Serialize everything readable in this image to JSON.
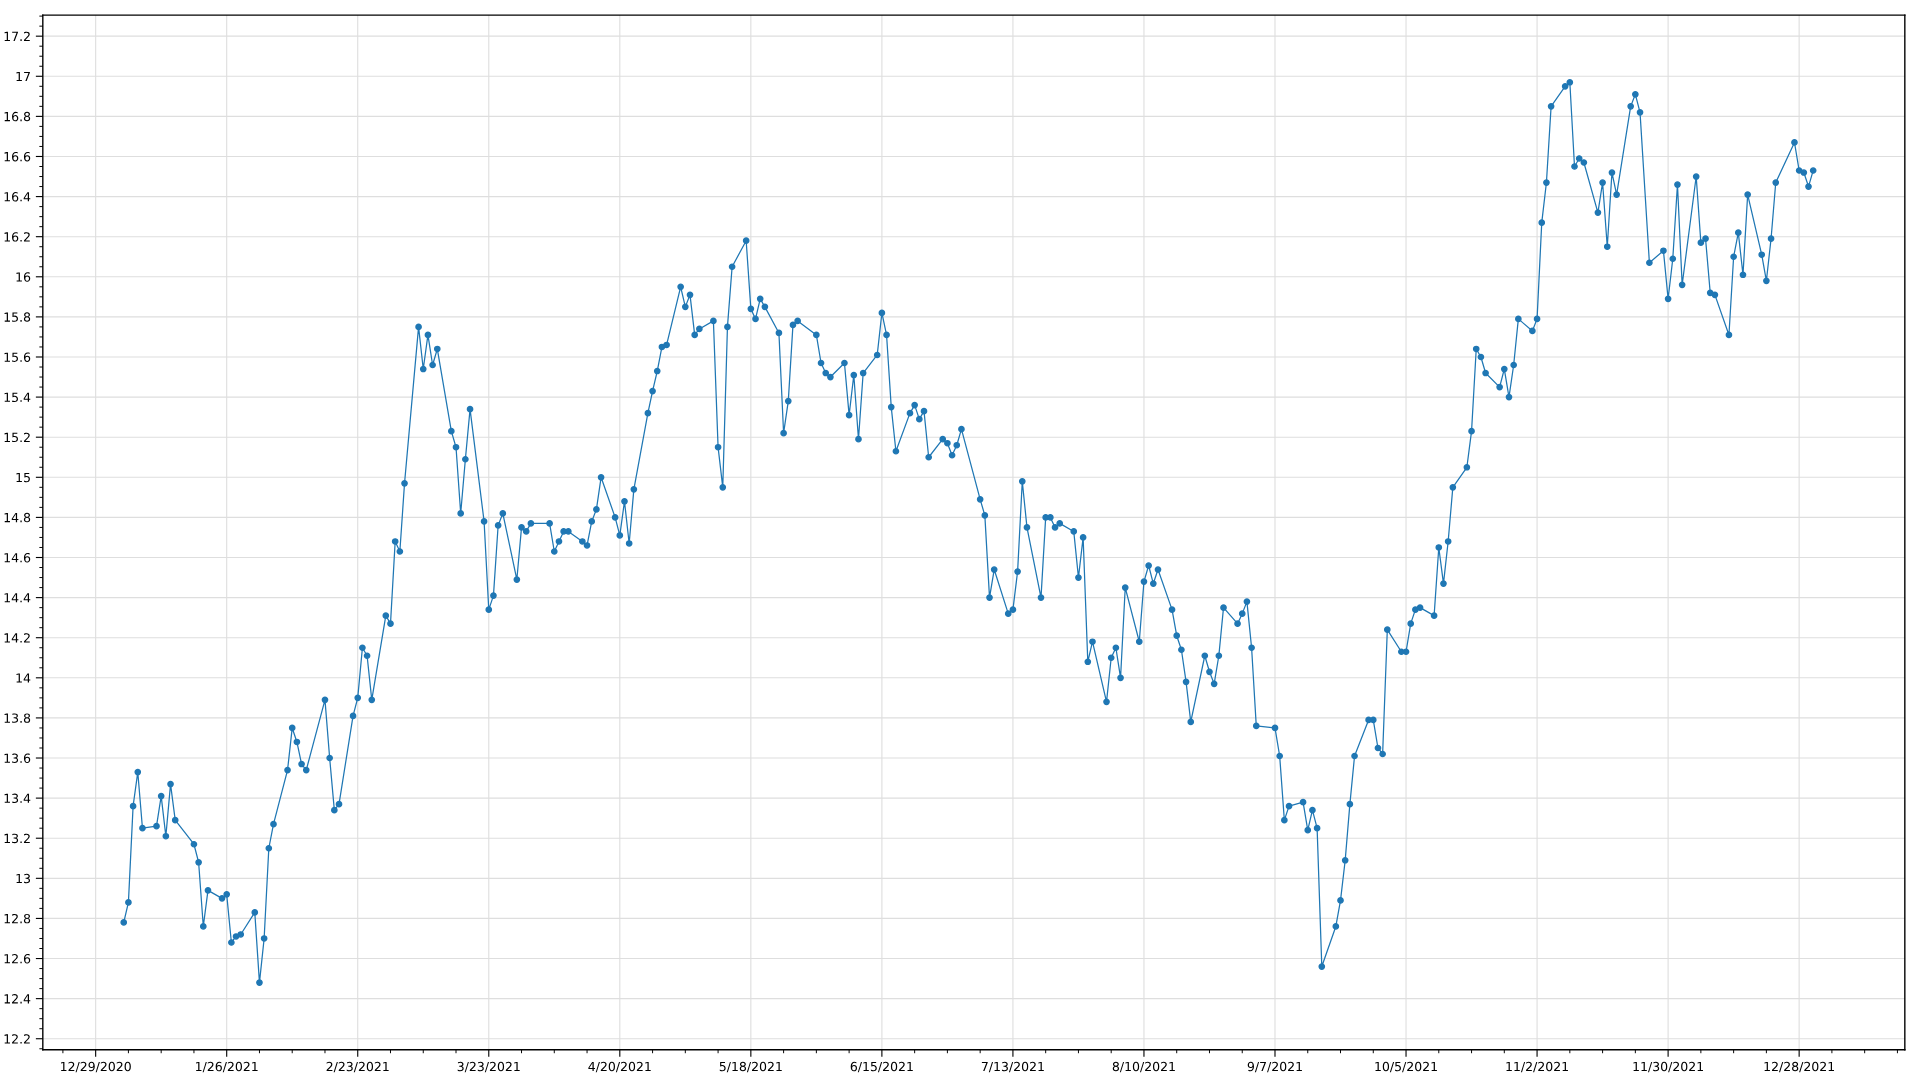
{
  "chart_data": {
    "type": "line",
    "marker": "circle",
    "line_style": "solid",
    "grid": true,
    "xlim": [
      "2020-12-17T17:00",
      "2022-01-19T14:00"
    ],
    "ylim": [
      12.145,
      17.305
    ],
    "xticks": [
      {
        "value": "2020-12-29",
        "label": "12/29/2020"
      },
      {
        "value": "2021-01-26",
        "label": "1/26/2021"
      },
      {
        "value": "2021-02-23",
        "label": "2/23/2021"
      },
      {
        "value": "2021-03-23",
        "label": "3/23/2021"
      },
      {
        "value": "2021-04-20",
        "label": "4/20/2021"
      },
      {
        "value": "2021-05-18",
        "label": "5/18/2021"
      },
      {
        "value": "2021-06-15",
        "label": "6/15/2021"
      },
      {
        "value": "2021-07-13",
        "label": "7/13/2021"
      },
      {
        "value": "2021-08-10",
        "label": "8/10/2021"
      },
      {
        "value": "2021-09-07",
        "label": "9/7/2021"
      },
      {
        "value": "2021-10-05",
        "label": "10/5/2021"
      },
      {
        "value": "2021-11-02",
        "label": "11/2/2021"
      },
      {
        "value": "2021-11-30",
        "label": "11/30/2021"
      },
      {
        "value": "2021-12-28",
        "label": "12/28/2021"
      }
    ],
    "yticks": [
      12.2,
      12.4,
      12.6,
      12.8,
      13,
      13.2,
      13.4,
      13.6,
      13.8,
      14,
      14.2,
      14.4,
      14.6,
      14.8,
      15,
      15.2,
      15.4,
      15.6,
      15.8,
      16,
      16.2,
      16.4,
      16.6,
      16.8,
      17,
      17.2
    ],
    "x": [
      "2021-01-04",
      "2021-01-05",
      "2021-01-06",
      "2021-01-07",
      "2021-01-08",
      "2021-01-11",
      "2021-01-12",
      "2021-01-13",
      "2021-01-14",
      "2021-01-15",
      "2021-01-19",
      "2021-01-20",
      "2021-01-21",
      "2021-01-22",
      "2021-01-25",
      "2021-01-26",
      "2021-01-27",
      "2021-01-28",
      "2021-01-29",
      "2021-02-01",
      "2021-02-02",
      "2021-02-03",
      "2021-02-04",
      "2021-02-05",
      "2021-02-08",
      "2021-02-09",
      "2021-02-10",
      "2021-02-11",
      "2021-02-12",
      "2021-02-16",
      "2021-02-17",
      "2021-02-18",
      "2021-02-19",
      "2021-02-22",
      "2021-02-23",
      "2021-02-24",
      "2021-02-25",
      "2021-02-26",
      "2021-03-01",
      "2021-03-02",
      "2021-03-03",
      "2021-03-04",
      "2021-03-05",
      "2021-03-08",
      "2021-03-09",
      "2021-03-10",
      "2021-03-11",
      "2021-03-12",
      "2021-03-15",
      "2021-03-16",
      "2021-03-17",
      "2021-03-18",
      "2021-03-19",
      "2021-03-22",
      "2021-03-23",
      "2021-03-24",
      "2021-03-25",
      "2021-03-26",
      "2021-03-29",
      "2021-03-30",
      "2021-03-31",
      "2021-04-01",
      "2021-04-05",
      "2021-04-06",
      "2021-04-07",
      "2021-04-08",
      "2021-04-09",
      "2021-04-12",
      "2021-04-13",
      "2021-04-14",
      "2021-04-15",
      "2021-04-16",
      "2021-04-19",
      "2021-04-20",
      "2021-04-21",
      "2021-04-22",
      "2021-04-23",
      "2021-04-26",
      "2021-04-27",
      "2021-04-28",
      "2021-04-29",
      "2021-04-30",
      "2021-05-03",
      "2021-05-04",
      "2021-05-05",
      "2021-05-06",
      "2021-05-07",
      "2021-05-10",
      "2021-05-11",
      "2021-05-12",
      "2021-05-13",
      "2021-05-14",
      "2021-05-17",
      "2021-05-18",
      "2021-05-19",
      "2021-05-20",
      "2021-05-21",
      "2021-05-24",
      "2021-05-25",
      "2021-05-26",
      "2021-05-27",
      "2021-05-28",
      "2021-06-01",
      "2021-06-02",
      "2021-06-03",
      "2021-06-04",
      "2021-06-07",
      "2021-06-08",
      "2021-06-09",
      "2021-06-10",
      "2021-06-11",
      "2021-06-14",
      "2021-06-15",
      "2021-06-16",
      "2021-06-17",
      "2021-06-18",
      "2021-06-21",
      "2021-06-22",
      "2021-06-23",
      "2021-06-24",
      "2021-06-25",
      "2021-06-28",
      "2021-06-29",
      "2021-06-30",
      "2021-07-01",
      "2021-07-02",
      "2021-07-06",
      "2021-07-07",
      "2021-07-08",
      "2021-07-09",
      "2021-07-12",
      "2021-07-13",
      "2021-07-14",
      "2021-07-15",
      "2021-07-16",
      "2021-07-19",
      "2021-07-20",
      "2021-07-21",
      "2021-07-22",
      "2021-07-23",
      "2021-07-26",
      "2021-07-27",
      "2021-07-28",
      "2021-07-29",
      "2021-07-30",
      "2021-08-02",
      "2021-08-03",
      "2021-08-04",
      "2021-08-05",
      "2021-08-06",
      "2021-08-09",
      "2021-08-10",
      "2021-08-11",
      "2021-08-12",
      "2021-08-13",
      "2021-08-16",
      "2021-08-17",
      "2021-08-18",
      "2021-08-19",
      "2021-08-20",
      "2021-08-23",
      "2021-08-24",
      "2021-08-25",
      "2021-08-26",
      "2021-08-27",
      "2021-08-30",
      "2021-08-31",
      "2021-09-01",
      "2021-09-02",
      "2021-09-03",
      "2021-09-07",
      "2021-09-08",
      "2021-09-09",
      "2021-09-10",
      "2021-09-13",
      "2021-09-14",
      "2021-09-15",
      "2021-09-16",
      "2021-09-17",
      "2021-09-20",
      "2021-09-21",
      "2021-09-22",
      "2021-09-23",
      "2021-09-24",
      "2021-09-27",
      "2021-09-28",
      "2021-09-29",
      "2021-09-30",
      "2021-10-01",
      "2021-10-04",
      "2021-10-05",
      "2021-10-06",
      "2021-10-07",
      "2021-10-08",
      "2021-10-11",
      "2021-10-12",
      "2021-10-13",
      "2021-10-14",
      "2021-10-15",
      "2021-10-18",
      "2021-10-19",
      "2021-10-20",
      "2021-10-21",
      "2021-10-22",
      "2021-10-25",
      "2021-10-26",
      "2021-10-27",
      "2021-10-28",
      "2021-10-29",
      "2021-11-01",
      "2021-11-02",
      "2021-11-03",
      "2021-11-04",
      "2021-11-05",
      "2021-11-08",
      "2021-11-09",
      "2021-11-10",
      "2021-11-11",
      "2021-11-12",
      "2021-11-15",
      "2021-11-16",
      "2021-11-17",
      "2021-11-18",
      "2021-11-19",
      "2021-11-22",
      "2021-11-23",
      "2021-11-24",
      "2021-11-26",
      "2021-11-29",
      "2021-11-30",
      "2021-12-01",
      "2021-12-02",
      "2021-12-03",
      "2021-12-06",
      "2021-12-07",
      "2021-12-08",
      "2021-12-09",
      "2021-12-10",
      "2021-12-13",
      "2021-12-14",
      "2021-12-15",
      "2021-12-16",
      "2021-12-17",
      "2021-12-20",
      "2021-12-21",
      "2021-12-22",
      "2021-12-23",
      "2021-12-27",
      "2021-12-28",
      "2021-12-29",
      "2021-12-30",
      "2021-12-31"
    ],
    "series": [
      {
        "color": "#1f77b4",
        "values": [
          12.78,
          12.88,
          13.36,
          13.53,
          13.25,
          13.26,
          13.41,
          13.21,
          13.47,
          13.29,
          13.17,
          13.08,
          12.76,
          12.94,
          12.9,
          12.92,
          12.68,
          12.71,
          12.72,
          12.83,
          12.48,
          12.7,
          13.15,
          13.27,
          13.54,
          13.75,
          13.68,
          13.57,
          13.54,
          13.89,
          13.6,
          13.34,
          13.37,
          13.81,
          13.9,
          14.15,
          14.11,
          13.89,
          14.31,
          14.27,
          14.68,
          14.63,
          14.97,
          15.75,
          15.54,
          15.71,
          15.56,
          15.64,
          15.23,
          15.15,
          14.82,
          15.09,
          15.34,
          14.78,
          14.34,
          14.41,
          14.76,
          14.82,
          14.49,
          14.75,
          14.73,
          14.77,
          14.77,
          14.63,
          14.68,
          14.73,
          14.73,
          14.68,
          14.66,
          14.78,
          14.84,
          15.0,
          14.8,
          14.71,
          14.88,
          14.67,
          14.94,
          15.32,
          15.43,
          15.53,
          15.65,
          15.66,
          15.95,
          15.85,
          15.91,
          15.71,
          15.74,
          15.78,
          15.15,
          14.95,
          15.75,
          16.05,
          16.18,
          15.84,
          15.79,
          15.89,
          15.85,
          15.72,
          15.22,
          15.38,
          15.76,
          15.78,
          15.71,
          15.57,
          15.52,
          15.5,
          15.57,
          15.31,
          15.51,
          15.19,
          15.52,
          15.61,
          15.82,
          15.71,
          15.35,
          15.13,
          15.32,
          15.36,
          15.29,
          15.33,
          15.1,
          15.19,
          15.17,
          15.11,
          15.16,
          15.24,
          14.89,
          14.81,
          14.4,
          14.54,
          14.32,
          14.34,
          14.53,
          14.98,
          14.75,
          14.4,
          14.8,
          14.8,
          14.75,
          14.77,
          14.73,
          14.5,
          14.7,
          14.08,
          14.18,
          13.88,
          14.1,
          14.15,
          14.0,
          14.45,
          14.18,
          14.48,
          14.56,
          14.47,
          14.54,
          14.34,
          14.21,
          14.14,
          13.98,
          13.78,
          14.11,
          14.03,
          13.97,
          14.11,
          14.35,
          14.27,
          14.32,
          14.38,
          14.15,
          13.76,
          13.75,
          13.61,
          13.29,
          13.36,
          13.38,
          13.24,
          13.34,
          13.25,
          12.56,
          12.76,
          12.89,
          13.09,
          13.37,
          13.61,
          13.79,
          13.79,
          13.65,
          13.62,
          14.24,
          14.13,
          14.13,
          14.27,
          14.34,
          14.35,
          14.31,
          14.65,
          14.47,
          14.68,
          14.95,
          15.05,
          15.23,
          15.64,
          15.6,
          15.52,
          15.45,
          15.54,
          15.4,
          15.56,
          15.79,
          15.73,
          15.79,
          16.27,
          16.47,
          16.85,
          16.95,
          16.97,
          16.55,
          16.59,
          16.57,
          16.32,
          16.47,
          16.15,
          16.52,
          16.41,
          16.85,
          16.91,
          16.82,
          16.07,
          16.13,
          15.89,
          16.09,
          16.46,
          15.96,
          16.5,
          16.17,
          16.19,
          15.92,
          15.91,
          15.71,
          16.1,
          16.22,
          16.01,
          16.41,
          16.11,
          15.98,
          16.19,
          16.47,
          16.67,
          16.53,
          16.52,
          16.45,
          16.53
        ]
      }
    ]
  }
}
